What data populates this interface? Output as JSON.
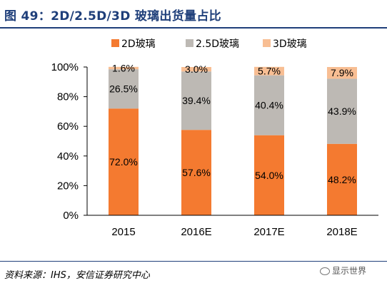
{
  "title": "图 49：2D/2.5D/3D 玻璃出货量占比",
  "source": "资料来源：IHS，安信证券研究中心",
  "watermark": "显示世界",
  "colors": {
    "series_2d": "#f47a30",
    "series_25d": "#bdb9b4",
    "series_3d": "#f8be93",
    "title": "#1f3f7a"
  },
  "chart_data": {
    "type": "bar",
    "stacked": true,
    "title": "",
    "xlabel": "",
    "ylabel": "",
    "categories": [
      "2015",
      "2016E",
      "2017E",
      "2018E"
    ],
    "series": [
      {
        "name": "2D玻璃",
        "values": [
          72.0,
          57.6,
          54.0,
          48.2
        ],
        "labels": [
          "72.0%",
          "57.6%",
          "54.0%",
          "48.2%"
        ],
        "color": "#f47a30"
      },
      {
        "name": "2.5D玻璃",
        "values": [
          26.5,
          39.4,
          40.4,
          43.9
        ],
        "labels": [
          "26.5%",
          "39.4%",
          "40.4%",
          "43.9%"
        ],
        "color": "#bdb9b4"
      },
      {
        "name": "3D玻璃",
        "values": [
          1.6,
          3.0,
          5.7,
          7.9
        ],
        "labels": [
          "1.6%",
          "3.0%",
          "5.7%",
          "7.9%"
        ],
        "color": "#f8be93"
      }
    ],
    "ylim": [
      0,
      100
    ],
    "yticks": [
      0,
      20,
      40,
      60,
      80,
      100
    ],
    "ytick_labels": [
      "0%",
      "20%",
      "40%",
      "60%",
      "80%",
      "100%"
    ],
    "grid": false,
    "legend": "top"
  }
}
